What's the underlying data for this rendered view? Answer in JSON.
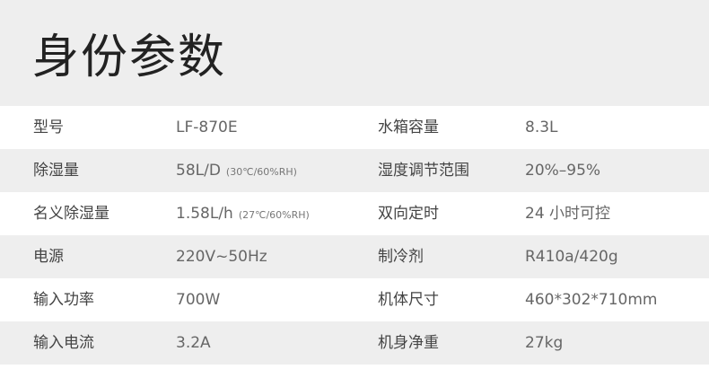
{
  "title": "身份参数",
  "rows": [
    {
      "k1": "型号",
      "v1": "LF-870E",
      "n1": "",
      "k2": "水箱容量",
      "v2": "8.3L"
    },
    {
      "k1": "除湿量",
      "v1": "58L/D",
      "n1": "(30℃/60%RH)",
      "k2": "湿度调节范围",
      "v2": "20%–95%"
    },
    {
      "k1": "名义除湿量",
      "v1": "1.58L/h",
      "n1": "(27℃/60%RH)",
      "k2": "双向定时",
      "v2": "24 小时可控"
    },
    {
      "k1": "电源",
      "v1": "220V~50Hz",
      "n1": "",
      "k2": "制冷剂",
      "v2": "R410a/420g"
    },
    {
      "k1": "输入功率",
      "v1": "700W",
      "n1": "",
      "k2": "机体尺寸",
      "v2": "460*302*710mm"
    },
    {
      "k1": "输入电流",
      "v1": "3.2A",
      "n1": "",
      "k2": "机身净重",
      "v2": "27kg"
    }
  ]
}
